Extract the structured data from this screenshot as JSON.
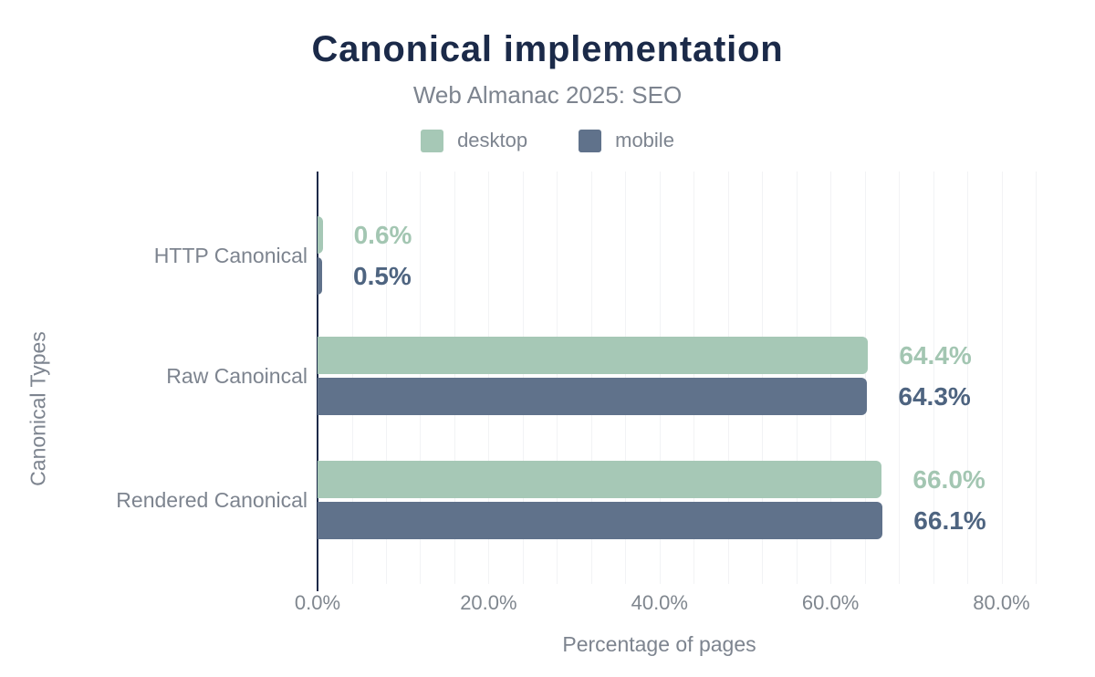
{
  "chart_data": {
    "type": "bar",
    "orientation": "horizontal",
    "title": "Canonical implementation",
    "subtitle": "Web Almanac 2025: SEO",
    "xlabel": "Percentage of pages",
    "ylabel": "Canonical Types",
    "categories": [
      "HTTP Canonical",
      "Raw Canoincal",
      "Rendered Canonical"
    ],
    "series": [
      {
        "name": "desktop",
        "values": [
          0.6,
          64.4,
          66.0
        ],
        "labels": [
          "0.6%",
          "64.4%",
          "66.0%"
        ],
        "color": "#a6c8b6",
        "label_color": "#a3c6b2"
      },
      {
        "name": "mobile",
        "values": [
          0.5,
          64.3,
          66.1
        ],
        "labels": [
          "0.5%",
          "64.3%",
          "66.1%"
        ],
        "color": "#60728b",
        "label_color": "#4e6480"
      }
    ],
    "x_ticks": [
      {
        "value": 0,
        "label": "0.0%"
      },
      {
        "value": 20,
        "label": "20.0%"
      },
      {
        "value": 40,
        "label": "40.0%"
      },
      {
        "value": 60,
        "label": "60.0%"
      },
      {
        "value": 80,
        "label": "80.0%"
      }
    ],
    "xlim": [
      0,
      84
    ],
    "grid_step": 4,
    "grid": "minor-vertical",
    "legend_position": "top",
    "colors": {
      "axis": "#1b2a49",
      "gridline": "#f2f3f5",
      "title": "#1b2a49",
      "muted_text": "#7d848f",
      "background": "#ffffff"
    }
  }
}
